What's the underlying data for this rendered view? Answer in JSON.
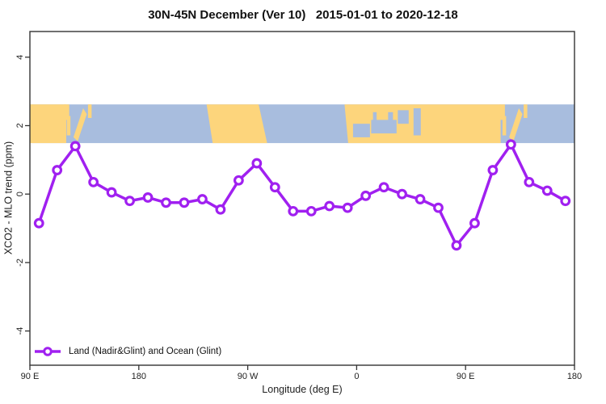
{
  "chart_data": {
    "type": "line",
    "title": "30N-45N December (Ver 10)   2015-01-01 to 2020-12-18",
    "xlabel": "Longitude (deg E)",
    "ylabel": "XCO2 - MLO trend (ppm)",
    "xlim": [
      90,
      540
    ],
    "ylim": [
      -5,
      4.75
    ],
    "grid": false,
    "background": "#ffffff",
    "axis_color": "#333333",
    "xticks": [
      {
        "pos": 90,
        "label": "90 E"
      },
      {
        "pos": 180,
        "label": "180"
      },
      {
        "pos": 270,
        "label": "90 W"
      },
      {
        "pos": 360,
        "label": "0"
      },
      {
        "pos": 450,
        "label": "90 E"
      },
      {
        "pos": 540,
        "label": "180"
      }
    ],
    "yticks": [
      {
        "pos": -4,
        "label": "-4"
      },
      {
        "pos": -2,
        "label": "-2"
      },
      {
        "pos": 0,
        "label": "0"
      },
      {
        "pos": 2,
        "label": "2"
      },
      {
        "pos": 4,
        "label": "4"
      }
    ],
    "series": [
      {
        "name": "Land (Nadir&Glint) and Ocean (Glint)",
        "color": "#A020F0",
        "marker": "open-circle",
        "x": [
          97.5,
          112.5,
          127.5,
          142.5,
          157.5,
          172.5,
          187.5,
          202.5,
          217.5,
          232.5,
          247.5,
          262.5,
          277.5,
          292.5,
          307.5,
          322.5,
          337.5,
          352.5,
          367.5,
          382.5,
          397.5,
          412.5,
          427.5,
          442.5,
          457.5,
          472.5,
          487.5,
          502.5,
          517.5,
          532.5
        ],
        "y": [
          -0.85,
          0.7,
          1.4,
          0.35,
          0.05,
          -0.2,
          -0.1,
          -0.25,
          -0.25,
          -0.15,
          -0.45,
          0.4,
          0.9,
          0.2,
          -0.5,
          -0.5,
          -0.35,
          -0.4,
          -0.05,
          0.2,
          0.0,
          -0.15,
          -0.4,
          -1.5,
          -0.85,
          0.7,
          1.45,
          0.35,
          0.1,
          -0.2
        ]
      }
    ],
    "legend": {
      "label": "Land (Nadir&Glint) and Ocean (Glint)",
      "position": "bottom-left"
    },
    "map_band": {
      "description": "world map strip 30N-45N drawn across plot between y values",
      "y_top": 2.62,
      "y_bottom": 1.49,
      "land_color": "#FDD57C",
      "ocean_color": "#A8BDDE",
      "land_shapes": [
        {
          "type": "rect",
          "x0": 90,
          "x1": 120,
          "t0": 0,
          "t1": 1
        },
        {
          "type": "rect",
          "x0": 118,
          "x1": 122.5,
          "t0": 0,
          "t1": 0.4
        },
        {
          "type": "rect",
          "x0": 120.5,
          "x1": 123.5,
          "t0": 0.3,
          "t1": 0.8
        },
        {
          "type": "poly",
          "pts": [
            [
              126,
              0.85
            ],
            [
              129.5,
              0.95
            ],
            [
              137,
              0.25
            ],
            [
              134,
              0.1
            ]
          ]
        },
        {
          "type": "rect",
          "x0": 138,
          "x1": 141,
          "t0": 0,
          "t1": 0.35
        },
        {
          "type": "poly",
          "pts": [
            [
              236,
              0
            ],
            [
              279,
              0
            ],
            [
              286,
              1
            ],
            [
              241,
              1
            ]
          ]
        },
        {
          "type": "poly",
          "pts": [
            [
              350,
              0
            ],
            [
              479,
              0
            ],
            [
              479,
              1
            ],
            [
              353,
              1
            ]
          ]
        },
        {
          "type": "rect",
          "x0": 478,
          "x1": 482.5,
          "t0": 0,
          "t1": 0.4
        },
        {
          "type": "rect",
          "x0": 480.5,
          "x1": 483.5,
          "t0": 0.3,
          "t1": 0.8
        },
        {
          "type": "poly",
          "pts": [
            [
              486,
              0.85
            ],
            [
              489.5,
              0.95
            ],
            [
              497,
              0.25
            ],
            [
              494,
              0.1
            ]
          ]
        },
        {
          "type": "rect",
          "x0": 498,
          "x1": 501,
          "t0": 0,
          "t1": 0.35
        }
      ],
      "ocean_patches": [
        {
          "type": "rect",
          "x0": 357,
          "x1": 371,
          "t0": 0.5,
          "t1": 0.85
        },
        {
          "type": "rect",
          "x0": 372,
          "x1": 393,
          "t0": 0.4,
          "t1": 0.75
        },
        {
          "type": "rect",
          "x0": 373.5,
          "x1": 376.5,
          "t0": 0.2,
          "t1": 0.45
        },
        {
          "type": "rect",
          "x0": 386,
          "x1": 390,
          "t0": 0.2,
          "t1": 0.5
        },
        {
          "type": "rect",
          "x0": 394,
          "x1": 403,
          "t0": 0.15,
          "t1": 0.5
        },
        {
          "type": "rect",
          "x0": 407,
          "x1": 413,
          "t0": 0.1,
          "t1": 0.8
        }
      ]
    }
  }
}
